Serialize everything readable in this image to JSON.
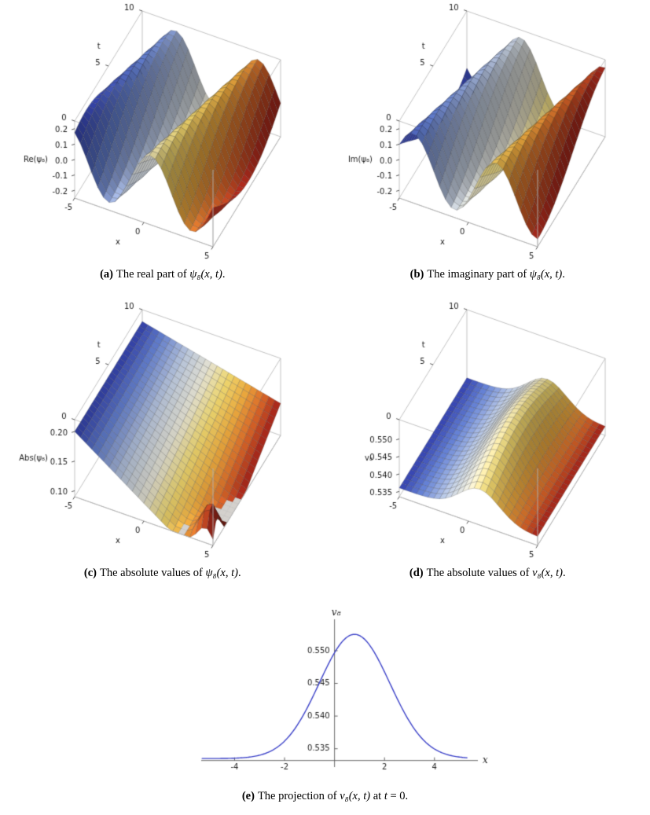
{
  "figure": {
    "panels": [
      {
        "id": "a",
        "caption": {
          "label": "(a)",
          "before": "The real part of ",
          "math": "ψ₈(x, t)",
          "mid": "",
          "math2": "",
          "after": "."
        }
      },
      {
        "id": "b",
        "caption": {
          "label": "(b)",
          "before": "The imaginary part of ",
          "math": "ψ₈(x, t)",
          "mid": "",
          "math2": "",
          "after": "."
        }
      },
      {
        "id": "c",
        "caption": {
          "label": "(c)",
          "before": "The absolute values of ",
          "math": "ψ₈(x, t)",
          "mid": "",
          "math2": "",
          "after": "."
        }
      },
      {
        "id": "d",
        "caption": {
          "label": "(d)",
          "before": "The absolute values of ",
          "math": "v₈(x, t)",
          "mid": "",
          "math2": "",
          "after": "."
        }
      },
      {
        "id": "e",
        "caption": {
          "label": "(e)",
          "before": "The projection of ",
          "math": "v₈(x, t)",
          "mid": " at ",
          "math2": "t",
          "after": " = 0."
        }
      }
    ]
  },
  "chart_data": [
    {
      "type": "surface3d",
      "xlabel": "x",
      "tlabel": "t",
      "zlabel": "Re(ψ₈)",
      "xlim": [
        -5,
        5
      ],
      "tlim": [
        0,
        10
      ],
      "zlim": [
        -0.25,
        0.25
      ],
      "xticks": [
        {
          "v": -5,
          "label": "-5"
        },
        {
          "v": 0,
          "label": "0"
        },
        {
          "v": 5,
          "label": "5"
        }
      ],
      "tticks": [
        {
          "v": 0,
          "label": "0"
        },
        {
          "v": 5,
          "label": "5"
        },
        {
          "v": 10,
          "label": "10"
        }
      ],
      "zticks": [
        {
          "v": 0.2,
          "label": "0.2"
        },
        {
          "v": 0.1,
          "label": "0.1"
        },
        {
          "v": 0,
          "label": "0.0"
        },
        {
          "v": -0.1,
          "label": "-0.1"
        },
        {
          "v": -0.2,
          "label": "-0.2"
        }
      ],
      "colormap": "temperature-along-x",
      "mesh": 24,
      "surface": {
        "kind": "wave",
        "trig": "cos",
        "amp": 0.2,
        "kx": 1.05,
        "kt": -0.3,
        "phase": -0.52
      }
    },
    {
      "type": "surface3d",
      "xlabel": "x",
      "tlabel": "t",
      "zlabel": "Im(ψ₈)",
      "xlim": [
        -5,
        5
      ],
      "tlim": [
        0,
        10
      ],
      "zlim": [
        -0.25,
        0.25
      ],
      "xticks": [
        {
          "v": -5,
          "label": "-5"
        },
        {
          "v": 0,
          "label": "0"
        },
        {
          "v": 5,
          "label": "5"
        }
      ],
      "tticks": [
        {
          "v": 0,
          "label": "0"
        },
        {
          "v": 5,
          "label": "5"
        },
        {
          "v": 10,
          "label": "10"
        }
      ],
      "zticks": [
        {
          "v": 0.2,
          "label": "0.2"
        },
        {
          "v": 0.1,
          "label": "0.1"
        },
        {
          "v": 0,
          "label": "0.0"
        },
        {
          "v": -0.1,
          "label": "-0.1"
        },
        {
          "v": -0.2,
          "label": "-0.2"
        }
      ],
      "colormap": "temperature-along-x",
      "mesh": 24,
      "surface": {
        "kind": "wave",
        "trig": "sin",
        "amp": 0.2,
        "kx": 1.05,
        "kt": -0.3,
        "phase": -0.52
      }
    },
    {
      "type": "surface3d",
      "xlabel": "x",
      "tlabel": "t",
      "zlabel": "Abs(ψ₈)",
      "xlim": [
        -5,
        5
      ],
      "tlim": [
        0,
        10
      ],
      "zlim": [
        0.09,
        0.22
      ],
      "xticks": [
        {
          "v": -5,
          "label": "-5"
        },
        {
          "v": 0,
          "label": "0"
        },
        {
          "v": 5,
          "label": "5"
        }
      ],
      "tticks": [
        {
          "v": 0,
          "label": "0"
        },
        {
          "v": 5,
          "label": "5"
        },
        {
          "v": 10,
          "label": "10"
        }
      ],
      "zticks": [
        {
          "v": 0.2,
          "label": "0.20"
        },
        {
          "v": 0.15,
          "label": "0.15"
        },
        {
          "v": 0.1,
          "label": "0.10"
        }
      ],
      "colormap": "temperature-along-x",
      "mesh": 24,
      "clip_color": "#d4d1cd",
      "surface": {
        "kind": "slope",
        "base": 0.2,
        "drop": 0.16,
        "tfactor": 0.65,
        "spike_x": 4.6,
        "spike_t": 0.6,
        "spike_amp": 0.09,
        "spike_w": 1.3
      }
    },
    {
      "type": "surface3d",
      "xlabel": "x",
      "tlabel": "t",
      "zlabel": "v₈",
      "xlim": [
        -5,
        5
      ],
      "tlim": [
        0,
        10
      ],
      "zlim": [
        0.5335,
        0.5555
      ],
      "xticks": [
        {
          "v": -5,
          "label": "-5"
        },
        {
          "v": 0,
          "label": "0"
        },
        {
          "v": 5,
          "label": "5"
        }
      ],
      "tticks": [
        {
          "v": 0,
          "label": "0"
        },
        {
          "v": 5,
          "label": "5"
        },
        {
          "v": 10,
          "label": "10"
        }
      ],
      "zticks": [
        {
          "v": 0.55,
          "label": "0.550"
        },
        {
          "v": 0.545,
          "label": "0.545"
        },
        {
          "v": 0.54,
          "label": "0.540"
        },
        {
          "v": 0.535,
          "label": "0.535"
        }
      ],
      "colormap": "temperature-along-x",
      "mesh": 24,
      "surface": {
        "kind": "bump",
        "base": 0.536,
        "amp": 0.0125,
        "cx": 0.8,
        "wx": 2.0,
        "m0": 0.62,
        "m1": 0.38
      }
    },
    {
      "type": "line",
      "xlabel": "x",
      "ylabel": "v₈",
      "xlim": [
        -5.4,
        5.8
      ],
      "ylim": [
        0.5322,
        0.5548
      ],
      "axis_y": 0.5332,
      "x_range": [
        -5.3,
        5.3
      ],
      "xticks": [
        {
          "v": -4,
          "label": "-4"
        },
        {
          "v": -2,
          "label": "-2"
        },
        {
          "v": 2,
          "label": "2"
        },
        {
          "v": 4,
          "label": "4"
        }
      ],
      "yticks": [
        {
          "v": 0.535,
          "label": "0.535"
        },
        {
          "v": 0.54,
          "label": "0.540"
        },
        {
          "v": 0.545,
          "label": "0.545"
        },
        {
          "v": 0.55,
          "label": "0.550"
        }
      ],
      "curve": {
        "base": 0.5335,
        "amp": 0.019,
        "cx": 0.8,
        "wx": 2.0
      },
      "line_color": "#3c42c8",
      "points": [
        {
          "x": -5,
          "y": 0.5335
        },
        {
          "x": -4,
          "y": 0.5336
        },
        {
          "x": -3,
          "y": 0.534
        },
        {
          "x": -2,
          "y": 0.5362
        },
        {
          "x": -1,
          "y": 0.542
        },
        {
          "x": 0,
          "y": 0.5497
        },
        {
          "x": 1,
          "y": 0.5523
        },
        {
          "x": 2,
          "y": 0.5468
        },
        {
          "x": 3,
          "y": 0.5392
        },
        {
          "x": 4,
          "y": 0.535
        },
        {
          "x": 5,
          "y": 0.5337
        }
      ]
    }
  ]
}
